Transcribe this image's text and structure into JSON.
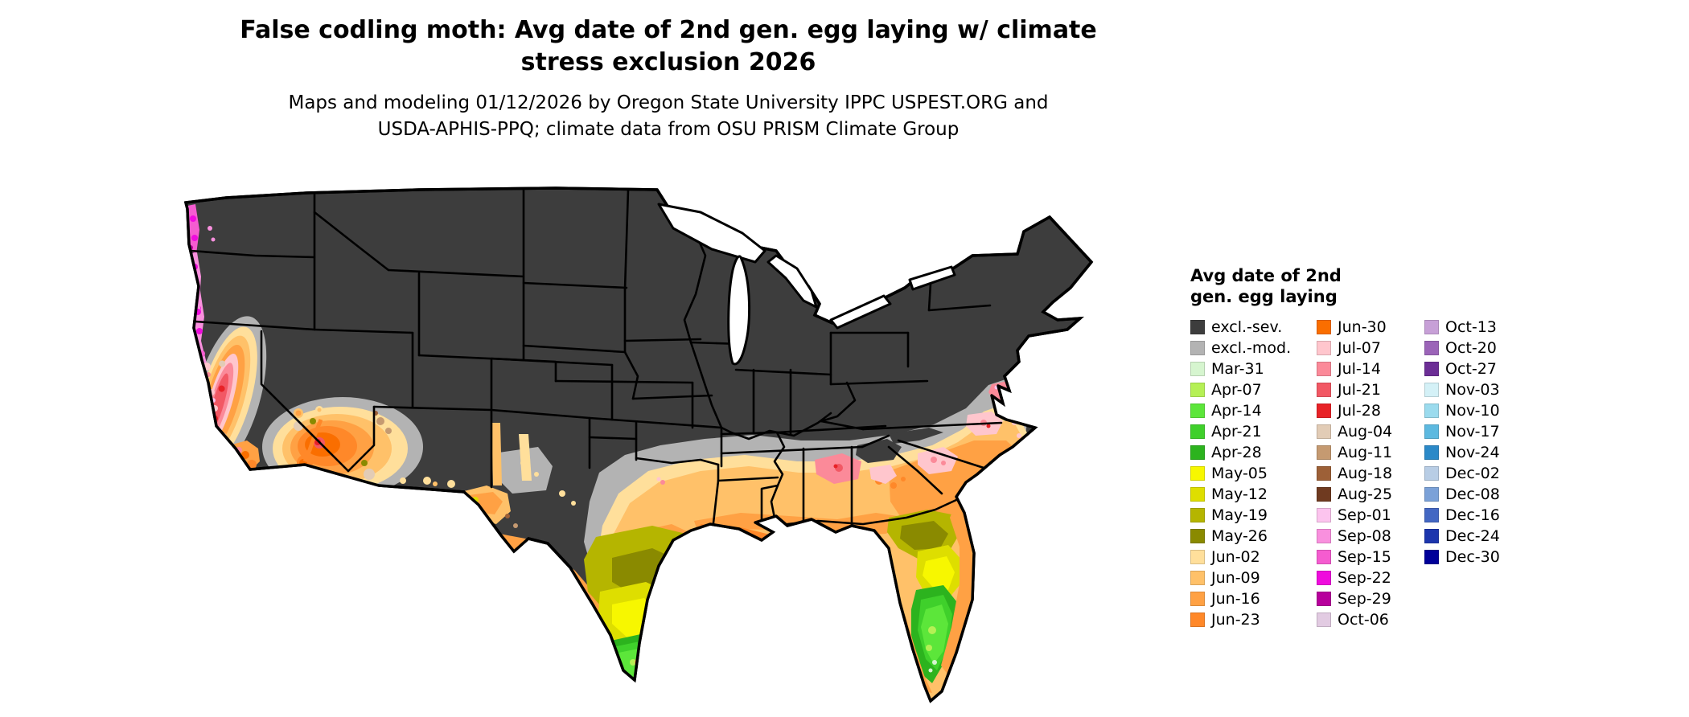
{
  "title": {
    "line1": "False codling moth: Avg date of 2nd gen. egg laying w/ climate",
    "line2": "stress exclusion 2026"
  },
  "subtitle": {
    "line1": "Maps and modeling 01/12/2026 by Oregon State University IPPC USPEST.ORG and",
    "line2": "USDA-APHIS-PPQ; climate data from OSU PRISM Climate Group"
  },
  "legend": {
    "title_line1": "Avg date of 2nd",
    "title_line2": "gen. egg laying",
    "columns": [
      [
        {
          "key": "excl_sev",
          "label": "excl.-sev."
        },
        {
          "key": "excl_mod",
          "label": "excl.-mod."
        },
        {
          "key": "mar31",
          "label": "Mar-31"
        },
        {
          "key": "apr07",
          "label": "Apr-07"
        },
        {
          "key": "apr14",
          "label": "Apr-14"
        },
        {
          "key": "apr21",
          "label": "Apr-21"
        },
        {
          "key": "apr28",
          "label": "Apr-28"
        },
        {
          "key": "may05",
          "label": "May-05"
        },
        {
          "key": "may12",
          "label": "May-12"
        },
        {
          "key": "may19",
          "label": "May-19"
        },
        {
          "key": "may26",
          "label": "May-26"
        },
        {
          "key": "jun02",
          "label": "Jun-02"
        },
        {
          "key": "jun09",
          "label": "Jun-09"
        },
        {
          "key": "jun16",
          "label": "Jun-16"
        },
        {
          "key": "jun23",
          "label": "Jun-23"
        }
      ],
      [
        {
          "key": "jun30",
          "label": "Jun-30"
        },
        {
          "key": "jul07",
          "label": "Jul-07"
        },
        {
          "key": "jul14",
          "label": "Jul-14"
        },
        {
          "key": "jul21",
          "label": "Jul-21"
        },
        {
          "key": "jul28",
          "label": "Jul-28"
        },
        {
          "key": "aug04",
          "label": "Aug-04"
        },
        {
          "key": "aug11",
          "label": "Aug-11"
        },
        {
          "key": "aug18",
          "label": "Aug-18"
        },
        {
          "key": "aug25",
          "label": "Aug-25"
        },
        {
          "key": "sep01",
          "label": "Sep-01"
        },
        {
          "key": "sep08",
          "label": "Sep-08"
        },
        {
          "key": "sep15",
          "label": "Sep-15"
        },
        {
          "key": "sep22",
          "label": "Sep-22"
        },
        {
          "key": "sep29",
          "label": "Sep-29"
        },
        {
          "key": "oct06",
          "label": "Oct-06"
        }
      ],
      [
        {
          "key": "oct13",
          "label": "Oct-13"
        },
        {
          "key": "oct20",
          "label": "Oct-20"
        },
        {
          "key": "oct27",
          "label": "Oct-27"
        },
        {
          "key": "nov03",
          "label": "Nov-03"
        },
        {
          "key": "nov10",
          "label": "Nov-10"
        },
        {
          "key": "nov17",
          "label": "Nov-17"
        },
        {
          "key": "nov24",
          "label": "Nov-24"
        },
        {
          "key": "dec02",
          "label": "Dec-02"
        },
        {
          "key": "dec08",
          "label": "Dec-08"
        },
        {
          "key": "dec16",
          "label": "Dec-16"
        },
        {
          "key": "dec24",
          "label": "Dec-24"
        },
        {
          "key": "dec30",
          "label": "Dec-30"
        }
      ]
    ]
  },
  "colors": {
    "excl_sev": "#3d3d3d",
    "excl_mod": "#b3b3b3",
    "mar31": "#d6f5cf",
    "apr07": "#b5f055",
    "apr14": "#5ce63a",
    "apr21": "#3fd02b",
    "apr28": "#2cb31e",
    "may05": "#f7f700",
    "may12": "#dede00",
    "may19": "#b5b500",
    "may26": "#8a8a00",
    "jun02": "#ffdf9b",
    "jun09": "#ffc169",
    "jun16": "#ffa144",
    "jun23": "#ff8829",
    "jun30": "#fa6e00",
    "jul07": "#ffc6cd",
    "jul14": "#fb8a99",
    "jul21": "#f25864",
    "jul28": "#e82227",
    "aug04": "#e2ccb6",
    "aug11": "#c59a71",
    "aug18": "#9d6037",
    "aug25": "#6f3a20",
    "sep01": "#fcc4ee",
    "sep08": "#f990de",
    "sep15": "#f55cd0",
    "sep22": "#ef0cdd",
    "sep29": "#b7009c",
    "oct06": "#e2cbe2",
    "oct13": "#c7a0d7",
    "oct20": "#9b64b8",
    "oct27": "#6c2e96",
    "nov03": "#d4f1f7",
    "nov10": "#9bdbee",
    "nov17": "#5db9e0",
    "nov24": "#2b89c8",
    "dec02": "#b8cde5",
    "dec08": "#7ba1d8",
    "dec16": "#4367c3",
    "dec24": "#1c35ad",
    "dec30": "#000099",
    "map_line": "#000000",
    "water": "#ffffff"
  }
}
